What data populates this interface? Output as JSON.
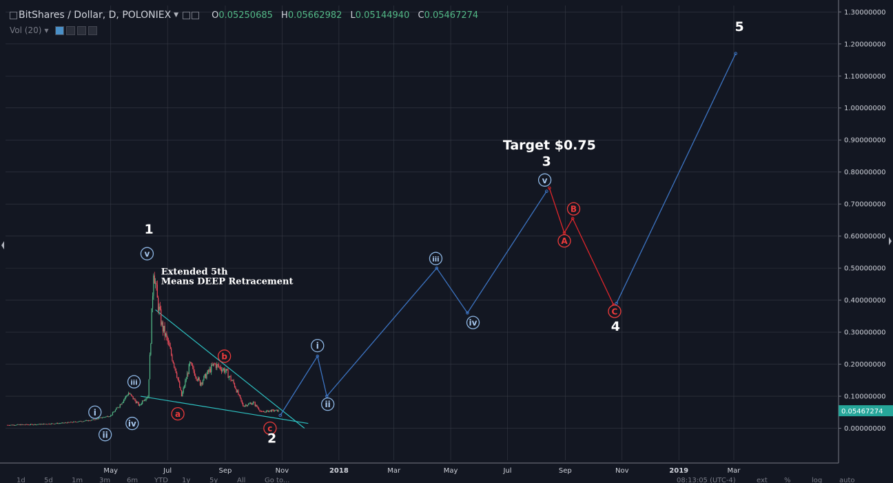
{
  "header": {
    "symbol_title": "BitShares / Dollar, D, POLONIEX",
    "open_label": "O",
    "open_value": "0.05250685",
    "high_label": "H",
    "high_value": "0.05662982",
    "low_label": "L",
    "low_value": "0.05144940",
    "close_label": "C",
    "close_value": "0.05467274"
  },
  "volume_indicator": {
    "label": "Vol (20)"
  },
  "bottom_toolbar": {
    "ranges": [
      "1d",
      "5d",
      "1m",
      "3m",
      "6m",
      "YTD",
      "1y",
      "5y",
      "All",
      "Go to..."
    ],
    "clock": "08:13:05 (UTC-4)",
    "right_items": [
      "ext",
      "%",
      "log",
      "auto"
    ]
  },
  "colors": {
    "background": "#131722",
    "grid": "#363a45",
    "impulse_path": "#3d75c4",
    "correction_path": "#e0262b",
    "trendline": "#2ec4c4",
    "up_candle": "#53b987",
    "down_candle": "#eb4d5c",
    "last_price_tag": "#26a69a",
    "wave_circle_blue": "#8fb8e6",
    "wave_circle_red": "#ef3b3b"
  },
  "chart_data": {
    "type": "line",
    "symbol": "BitShares / Dollar",
    "interval": "D",
    "exchange": "POLONIEX",
    "y_axis": {
      "ticks": [
        "1.30000000",
        "1.20000000",
        "1.10000000",
        "1.00000000",
        "0.90000000",
        "0.80000000",
        "0.70000000",
        "0.60000000",
        "0.50000000",
        "0.40000000",
        "0.30000000",
        "0.20000000",
        "0.10000000",
        "0.00000000"
      ],
      "range": [
        -0.1,
        1.32
      ],
      "last_price_label": "0.05467274",
      "last_price": 0.05467274
    },
    "x_axis": {
      "ticks": [
        "May",
        "Jul",
        "Sep",
        "Nov",
        "2018",
        "Mar",
        "May",
        "Jul",
        "Sep",
        "Nov",
        "2019",
        "Mar"
      ],
      "tick_dates": [
        "2017-05-01",
        "2017-07-01",
        "2017-09-01",
        "2017-11-01",
        "2018-01-01",
        "2018-03-01",
        "2018-05-01",
        "2018-07-01",
        "2018-09-01",
        "2018-11-01",
        "2019-01-01",
        "2019-03-01"
      ],
      "range": [
        "2017-01-08",
        "2019-06-20"
      ]
    },
    "price_series_approx": [
      [
        "2017-01-10",
        0.01
      ],
      [
        "2017-02-10",
        0.012
      ],
      [
        "2017-03-10",
        0.016
      ],
      [
        "2017-04-10",
        0.025
      ],
      [
        "2017-05-01",
        0.04
      ],
      [
        "2017-05-10",
        0.07
      ],
      [
        "2017-05-20",
        0.11
      ],
      [
        "2017-06-01",
        0.07
      ],
      [
        "2017-06-05",
        0.09
      ],
      [
        "2017-06-10",
        0.1
      ],
      [
        "2017-06-13",
        0.28
      ],
      [
        "2017-06-16",
        0.5
      ],
      [
        "2017-06-20",
        0.4
      ],
      [
        "2017-06-25",
        0.32
      ],
      [
        "2017-07-01",
        0.27
      ],
      [
        "2017-07-10",
        0.18
      ],
      [
        "2017-07-16",
        0.1
      ],
      [
        "2017-07-25",
        0.2
      ],
      [
        "2017-08-05",
        0.14
      ],
      [
        "2017-08-20",
        0.2
      ],
      [
        "2017-09-01",
        0.18
      ],
      [
        "2017-09-10",
        0.14
      ],
      [
        "2017-09-20",
        0.07
      ],
      [
        "2017-10-01",
        0.08
      ],
      [
        "2017-10-10",
        0.05
      ],
      [
        "2017-10-20",
        0.055
      ],
      [
        "2017-10-29",
        0.0547
      ]
    ],
    "projection_blue": [
      [
        "2017-10-30",
        0.04
      ],
      [
        "2017-12-09",
        0.225
      ],
      [
        "2017-12-19",
        0.1
      ],
      [
        "2018-04-16",
        0.5
      ],
      [
        "2018-05-19",
        0.36
      ],
      [
        "2018-08-12",
        0.74
      ]
    ],
    "projection_red": [
      [
        "2018-08-15",
        0.75
      ],
      [
        "2018-08-31",
        0.61
      ],
      [
        "2018-09-09",
        0.655
      ],
      [
        "2018-10-23",
        0.385
      ]
    ],
    "projection_blue_2": [
      [
        "2018-10-26",
        0.39
      ],
      [
        "2019-03-03",
        1.17
      ]
    ],
    "trendlines": [
      {
        "from": [
          "2017-06-18",
          0.37
        ],
        "to": [
          "2017-11-25",
          0.0
        ]
      },
      {
        "from": [
          "2017-06-02",
          0.1
        ],
        "to": [
          "2017-11-29",
          0.015
        ]
      }
    ],
    "wave_labels": [
      {
        "text": "i",
        "date": "2017-04-14",
        "price": 0.05,
        "style": "blue-circle"
      },
      {
        "text": "ii",
        "date": "2017-04-25",
        "price": -0.02,
        "style": "blue-circle"
      },
      {
        "text": "iii",
        "date": "2017-05-26",
        "price": 0.145,
        "style": "blue-circle"
      },
      {
        "text": "iv",
        "date": "2017-05-24",
        "price": 0.015,
        "style": "blue-circle"
      },
      {
        "text": "v",
        "date": "2017-06-09",
        "price": 0.545,
        "style": "blue-circle"
      },
      {
        "text": "a",
        "date": "2017-07-12",
        "price": 0.045,
        "style": "red-circle"
      },
      {
        "text": "b",
        "date": "2017-08-31",
        "price": 0.225,
        "style": "red-circle"
      },
      {
        "text": "c",
        "date": "2017-10-19",
        "price": 0.0,
        "style": "red-circle"
      },
      {
        "text": "i",
        "date": "2017-12-09",
        "price": 0.258,
        "style": "blue-circle"
      },
      {
        "text": "ii",
        "date": "2017-12-20",
        "price": 0.075,
        "style": "blue-circle"
      },
      {
        "text": "iii",
        "date": "2018-04-15",
        "price": 0.53,
        "style": "blue-circle"
      },
      {
        "text": "iv",
        "date": "2018-05-25",
        "price": 0.33,
        "style": "blue-circle"
      },
      {
        "text": "v",
        "date": "2018-08-10",
        "price": 0.775,
        "style": "blue-circle"
      },
      {
        "text": "A",
        "date": "2018-08-31",
        "price": 0.585,
        "style": "red-circle"
      },
      {
        "text": "B",
        "date": "2018-09-10",
        "price": 0.685,
        "style": "red-circle"
      },
      {
        "text": "C",
        "date": "2018-10-24",
        "price": 0.365,
        "style": "red-circle"
      }
    ],
    "wave_numbers": [
      {
        "text": "1",
        "date": "2017-06-11",
        "price": 0.608
      },
      {
        "text": "2",
        "date": "2017-10-21",
        "price": -0.045
      },
      {
        "text": "3",
        "date": "2018-08-12",
        "price": 0.82
      },
      {
        "text": "4",
        "date": "2018-10-25",
        "price": 0.305
      },
      {
        "text": "5",
        "date": "2019-03-07",
        "price": 1.24
      }
    ],
    "annotations": [
      {
        "text": "Extended 5th",
        "date": "2017-06-24",
        "price": 0.48
      },
      {
        "text": "Means DEEP Retracement",
        "date": "2017-06-24",
        "price": 0.45
      },
      {
        "text": "Target $0.75",
        "date": "2018-08-15",
        "price": 0.87
      }
    ]
  }
}
